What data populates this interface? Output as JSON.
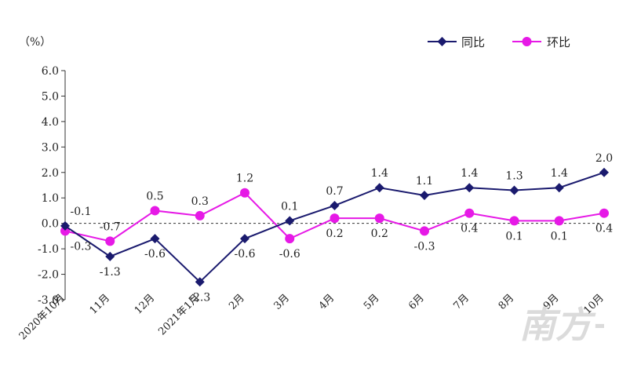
{
  "chart_data": {
    "type": "line",
    "unit_label": "（%）",
    "categories": [
      "2020年10月",
      "11月",
      "12月",
      "2021年1月",
      "2月",
      "3月",
      "4月",
      "5月",
      "6月",
      "7月",
      "8月",
      "9月",
      "10月"
    ],
    "ylim": [
      -3.0,
      6.0
    ],
    "yticks": [
      "6.0",
      "5.0",
      "4.0",
      "3.0",
      "2.0",
      "1.0",
      "0.0",
      "-1.0",
      "-2.0",
      "-3.0"
    ],
    "ytick_values": [
      6,
      5,
      4,
      3,
      2,
      1,
      0,
      -1,
      -2,
      -3
    ],
    "zero_line": "dashed",
    "grid": false,
    "legend_position": "top-right",
    "series": [
      {
        "name": "同比",
        "color": "#1a1a6e",
        "marker": "diamond",
        "values": [
          -0.1,
          -1.3,
          -0.6,
          -2.3,
          -0.6,
          0.1,
          0.7,
          1.4,
          1.1,
          1.4,
          1.3,
          1.4,
          2.0
        ],
        "labels": [
          "-0.1",
          "-1.3",
          "-0.6",
          "-2.3",
          "-0.6",
          "0.1",
          "0.7",
          "1.4",
          "1.1",
          "1.4",
          "1.3",
          "1.4",
          "2.0"
        ]
      },
      {
        "name": "环比",
        "color": "#e619e6",
        "marker": "circle",
        "values": [
          -0.3,
          -0.7,
          0.5,
          0.3,
          1.2,
          -0.6,
          0.2,
          0.2,
          -0.3,
          0.4,
          0.1,
          0.1,
          0.4
        ],
        "labels": [
          "-0.3",
          "-0.7",
          "0.5",
          "0.3",
          "1.2",
          "-0.6",
          "0.2",
          "0.2",
          "-0.3",
          "0.4",
          "0.1",
          "0.1",
          "0.4"
        ]
      }
    ]
  },
  "watermark": {
    "text": "南方+",
    "color": "#b0b0b0"
  }
}
